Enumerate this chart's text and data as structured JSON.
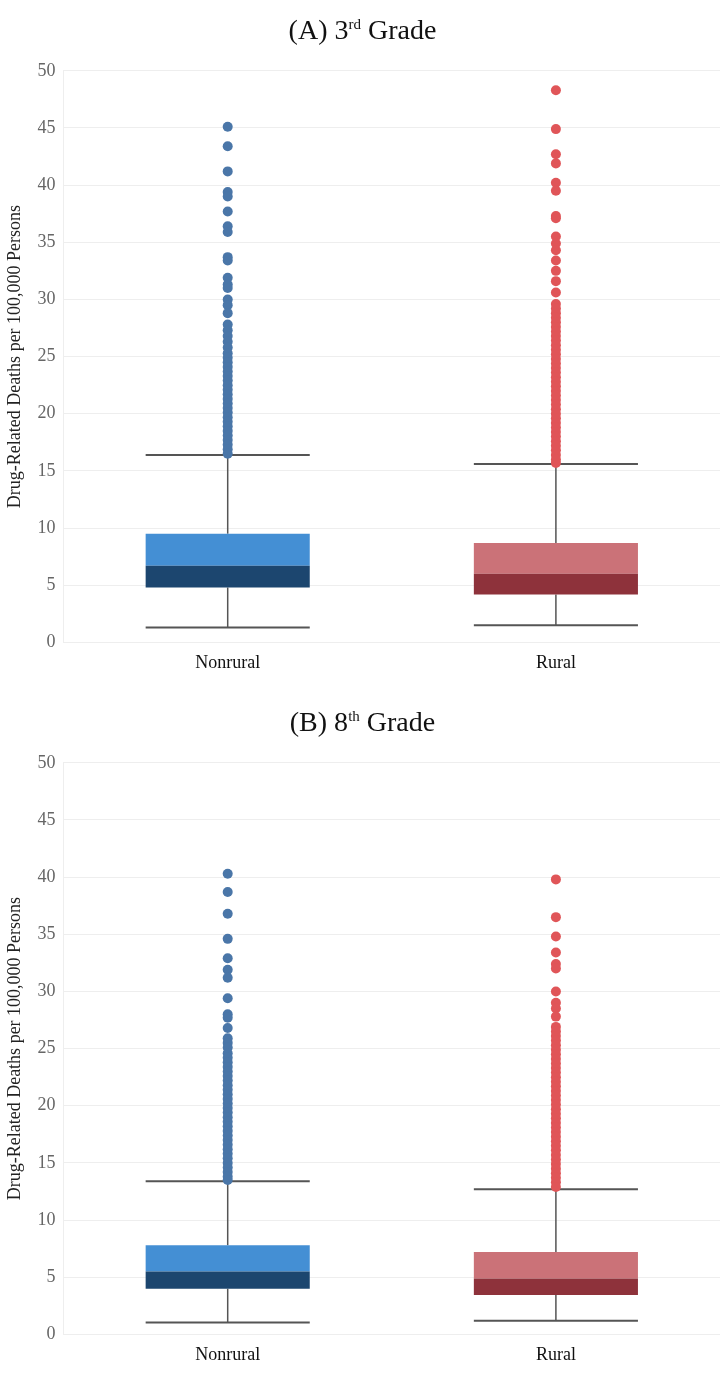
{
  "chart_data": [
    {
      "type": "box",
      "title": "(A) 3$^{rd}$ Grade",
      "ylabel": "Drug-Related Deaths per 100,000 Persons",
      "categories": [
        "Nonrural",
        "Rural"
      ],
      "ylim": [
        0,
        50
      ],
      "yticks": [
        0,
        5,
        10,
        15,
        20,
        25,
        30,
        35,
        40,
        45,
        50
      ],
      "grid": "y",
      "legend": false,
      "marker": "circle",
      "series": [
        {
          "color": "#4a76a8",
          "colors": [
            "#1c466f",
            "#448fd4"
          ],
          "boxes": [
            {
              "low": 1.3,
              "q1": 4.8,
              "median": 6.7,
              "q3": 9.5,
              "high": 16.4,
              "outliers": [
                45.1,
                43.4,
                41.2,
                39.4,
                39.0,
                37.7,
                36.4,
                35.9,
                33.7,
                33.4,
                31.9,
                31.3,
                31.0,
                30.0,
                29.5,
                28.8,
                27.8,
                27.3,
                26.8,
                26.3,
                25.8,
                25.3,
                24.9,
                24.5,
                24.1,
                23.7,
                23.3,
                22.9,
                22.5,
                22.1,
                21.7,
                21.3,
                20.9,
                20.5,
                20.1,
                19.7,
                19.3,
                18.9,
                18.5,
                18.1,
                17.7,
                17.3,
                16.9,
                16.5
              ]
            },
            null
          ]
        },
        {
          "color": "#e05558",
          "colors": [
            "#cb7278",
            "#8e323b"
          ],
          "boxes": [
            null,
            {
              "low": 1.5,
              "q1": 4.2,
              "median": 6.0,
              "q3": 8.7,
              "high": 15.6,
              "outliers": [
                48.3,
                44.9,
                42.7,
                41.9,
                40.2,
                39.5,
                37.3,
                37.1,
                35.5,
                34.9,
                34.3,
                33.4,
                32.5,
                31.6,
                30.6,
                29.6,
                29.2,
                28.8,
                28.4,
                28.0,
                27.6,
                27.2,
                26.8,
                26.4,
                26.0,
                25.6,
                25.2,
                24.8,
                24.4,
                24.0,
                23.6,
                23.2,
                22.8,
                22.4,
                22.0,
                21.6,
                21.2,
                20.8,
                20.4,
                20.0,
                19.6,
                19.2,
                18.8,
                18.4,
                18.0,
                17.6,
                17.2,
                16.8,
                16.4,
                16.0,
                15.7
              ]
            }
          ]
        }
      ]
    },
    {
      "type": "box",
      "title": "(B) 8$^{th}$ Grade",
      "ylabel": "Drug-Related Deaths per 100,000 Persons",
      "categories": [
        "Nonrural",
        "Rural"
      ],
      "ylim": [
        0,
        50
      ],
      "yticks": [
        0,
        5,
        10,
        15,
        20,
        25,
        30,
        35,
        40,
        45,
        50
      ],
      "grid": "y",
      "legend": false,
      "marker": "circle",
      "series": [
        {
          "color": "#4a76a8",
          "colors": [
            "#1c466f",
            "#448fd4"
          ],
          "boxes": [
            {
              "low": 1.05,
              "q1": 4.0,
              "median": 5.5,
              "q3": 7.8,
              "high": 13.4,
              "outliers": [
                40.3,
                38.7,
                36.8,
                34.6,
                32.9,
                31.9,
                31.2,
                29.4,
                28.0,
                27.7,
                26.8,
                25.9,
                25.5,
                25.1,
                24.6,
                24.2,
                23.8,
                23.4,
                23.0,
                22.6,
                22.2,
                21.8,
                21.4,
                21.0,
                20.6,
                20.2,
                19.8,
                19.4,
                19.0,
                18.6,
                18.2,
                17.8,
                17.4,
                17.0,
                16.6,
                16.2,
                15.8,
                15.4,
                15.0,
                14.6,
                14.2,
                13.8,
                13.5
              ]
            },
            null
          ]
        },
        {
          "color": "#e05558",
          "colors": [
            "#cb7278",
            "#8e323b"
          ],
          "boxes": [
            null,
            {
              "low": 1.2,
              "q1": 3.45,
              "median": 4.9,
              "q3": 7.2,
              "high": 12.7,
              "outliers": [
                39.8,
                36.5,
                34.8,
                33.4,
                32.4,
                32.0,
                30.0,
                29.0,
                28.5,
                27.8,
                26.9,
                26.5,
                26.1,
                25.7,
                25.3,
                24.9,
                24.5,
                24.1,
                23.7,
                23.3,
                22.9,
                22.5,
                22.1,
                21.7,
                21.3,
                20.9,
                20.5,
                20.1,
                19.7,
                19.3,
                18.9,
                18.5,
                18.1,
                17.7,
                17.3,
                16.9,
                16.5,
                16.1,
                15.7,
                15.3,
                14.9,
                14.5,
                14.1,
                13.7,
                13.3,
                12.9
              ]
            }
          ]
        }
      ]
    }
  ]
}
